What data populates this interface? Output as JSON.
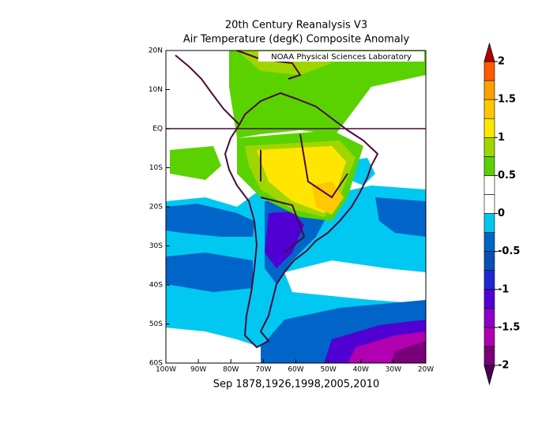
{
  "title": "20th Century Reanalysis V3",
  "subtitle": "Air Temperature (degK) Composite Anomaly",
  "credit": "NOAA Physical Sciences Laboratory",
  "caption": "Sep 1878,1926,1998,2005,2010",
  "lat_ticks": [
    {
      "value": 20,
      "label": "20N"
    },
    {
      "value": 10,
      "label": "10N"
    },
    {
      "value": 0,
      "label": "EQ"
    },
    {
      "value": -10,
      "label": "10S"
    },
    {
      "value": -20,
      "label": "20S"
    },
    {
      "value": -30,
      "label": "30S"
    },
    {
      "value": -40,
      "label": "40S"
    },
    {
      "value": -50,
      "label": "50S"
    },
    {
      "value": -60,
      "label": "60S"
    }
  ],
  "lon_ticks": [
    {
      "value": -100,
      "label": "100W"
    },
    {
      "value": -90,
      "label": "90W"
    },
    {
      "value": -80,
      "label": "80W"
    },
    {
      "value": -70,
      "label": "70W"
    },
    {
      "value": -60,
      "label": "60W"
    },
    {
      "value": -50,
      "label": "50W"
    },
    {
      "value": -40,
      "label": "40W"
    },
    {
      "value": -30,
      "label": "30W"
    },
    {
      "value": -20,
      "label": "20W"
    }
  ],
  "colorbar": {
    "lim": [
      -2,
      2
    ],
    "ticks": [
      2,
      1.5,
      1,
      0.5,
      0,
      -0.5,
      -1,
      -1.5,
      -2
    ],
    "over": "#b40000",
    "under": "#500050",
    "colors": [
      "#780078",
      "#b000b0",
      "#8c00c8",
      "#5000d2",
      "#1e28d2",
      "#0a50b4",
      "#0064c8",
      "#00c8f0",
      "#ffffff",
      "#ffffff",
      "#5ad200",
      "#a0d600",
      "#ffe600",
      "#ffc800",
      "#ff9f00",
      "#ff5a00"
    ]
  }
}
